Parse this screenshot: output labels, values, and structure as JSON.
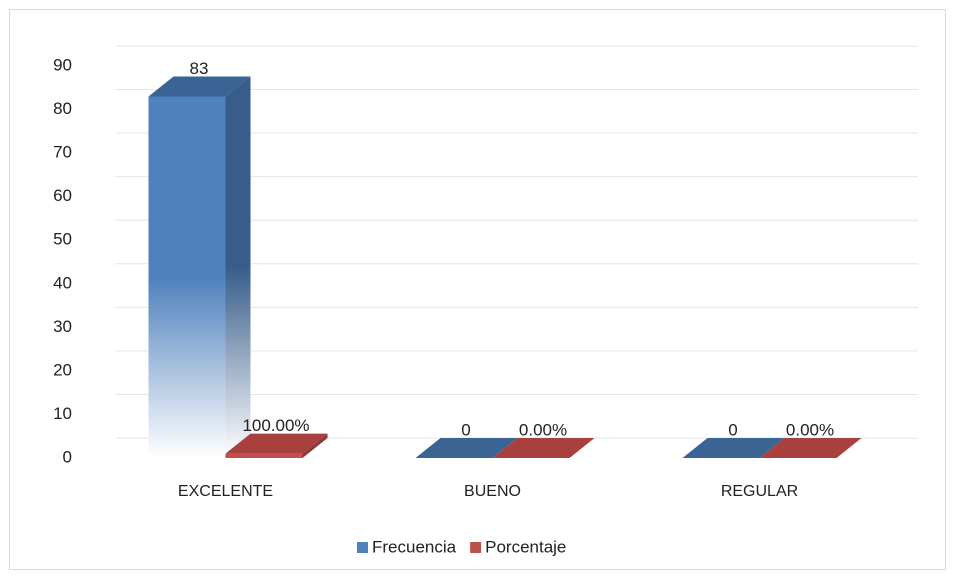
{
  "chart_data": {
    "type": "bar3d",
    "categories": [
      "EXCELENTE",
      "BUENO",
      "REGULAR"
    ],
    "series": [
      {
        "name": "Frecuencia",
        "color": "#4f81bd",
        "values": [
          83,
          0,
          0
        ]
      },
      {
        "name": "Porcentaje",
        "color": "#c0504d",
        "values": [
          1,
          0,
          0
        ],
        "value_labels": [
          "100.00%",
          "0.00%",
          "0.00%"
        ]
      }
    ],
    "ylim": [
      0,
      90
    ],
    "yticks": [
      0,
      10,
      20,
      30,
      40,
      50,
      60,
      70,
      80,
      90
    ],
    "grid": true,
    "legend": "bottom"
  }
}
